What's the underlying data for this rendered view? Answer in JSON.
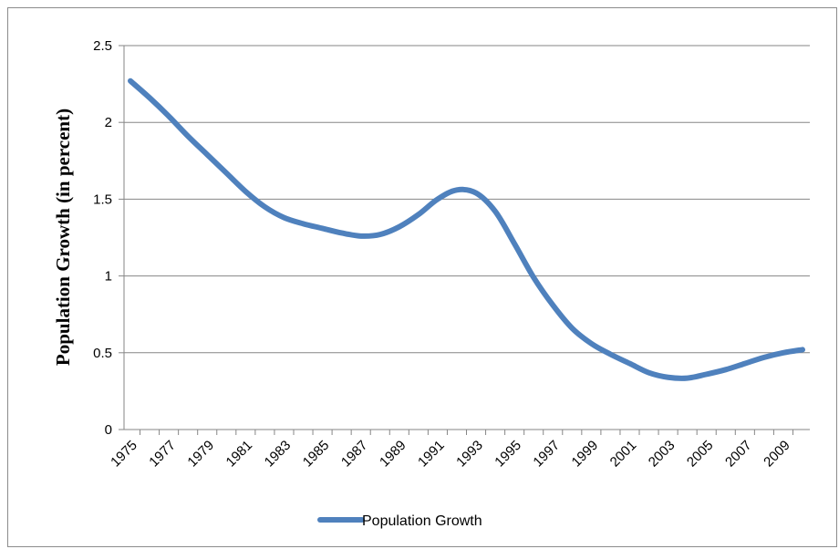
{
  "chart_data": {
    "type": "line",
    "title": "",
    "xlabel": "",
    "ylabel": "Population Growth (in percent)",
    "ylim": [
      0,
      2.5
    ],
    "yticks": [
      "0",
      "0.5",
      "1",
      "1.5",
      "2",
      "2.5"
    ],
    "x": [
      1975,
      1976,
      1977,
      1978,
      1979,
      1980,
      1981,
      1982,
      1983,
      1984,
      1985,
      1986,
      1987,
      1988,
      1989,
      1990,
      1991,
      1992,
      1993,
      1994,
      1995,
      1996,
      1997,
      1998,
      1999,
      2000,
      2001,
      2002,
      2003,
      2004,
      2005,
      2006,
      2007,
      2008,
      2009,
      2010
    ],
    "xtick_labels": [
      "1975",
      "1977",
      "1979",
      "1981",
      "1983",
      "1985",
      "1987",
      "1989",
      "1991",
      "1993",
      "1995",
      "1997",
      "1999",
      "2001",
      "2003",
      "2005",
      "2007",
      "2009"
    ],
    "grid": true,
    "legend_position": "bottom",
    "series": [
      {
        "name": "Population Growth",
        "color": "#4f81bd",
        "values": [
          2.27,
          2.16,
          2.04,
          1.91,
          1.79,
          1.67,
          1.55,
          1.45,
          1.38,
          1.34,
          1.31,
          1.28,
          1.26,
          1.27,
          1.32,
          1.4,
          1.5,
          1.56,
          1.54,
          1.42,
          1.21,
          0.99,
          0.81,
          0.66,
          0.56,
          0.49,
          0.43,
          0.37,
          0.34,
          0.335,
          0.36,
          0.39,
          0.43,
          0.47,
          0.5,
          0.52
        ]
      }
    ]
  }
}
